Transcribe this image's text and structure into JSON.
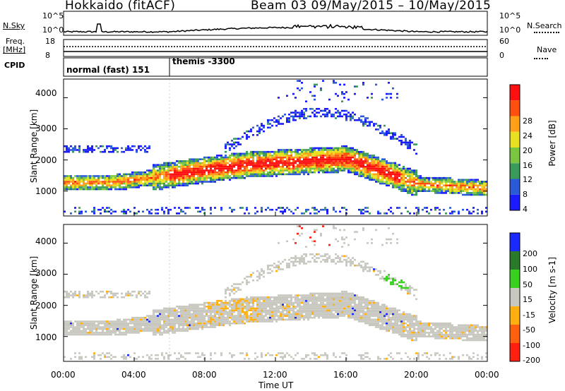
{
  "header": {
    "station": "Hokkaido (fitACF)",
    "beam_date": "Beam 03 09/May/2015 – 10/May/2015"
  },
  "top_panel": {
    "nsky_label": "N.Sky",
    "nsky_ticks": [
      "10^5",
      "10^0"
    ],
    "nsearch_label": "N.Search",
    "nsearch_ticks": [
      "10^5",
      "10^0"
    ],
    "freq_label": "Freq.",
    "freq_unit": "[MHz]",
    "freq_ticks": [
      "18",
      "8"
    ],
    "nave_label": "Nave",
    "nave_ticks": [
      "60",
      "0"
    ],
    "cpid_label": "CPID",
    "cpid_modes": [
      "normal (fast) 151",
      "themis -3300"
    ]
  },
  "chart_data": [
    {
      "type": "heatmap",
      "panel": "power",
      "ylabel": "Slant Range [km]",
      "yticks": [
        "1000",
        "2000",
        "3000",
        "4000"
      ],
      "ylim": [
        200,
        4600
      ],
      "colorbar_label": "Power [dB]",
      "colorbar_ticks": [
        "4",
        "8",
        "12",
        "16",
        "20",
        "24",
        "28"
      ],
      "colors": [
        "#1a1aff",
        "#2a5ad8",
        "#3a9a5a",
        "#7ac640",
        "#e8e020",
        "#ffa018",
        "#ff5010",
        "#ff1010"
      ]
    },
    {
      "type": "heatmap",
      "panel": "velocity",
      "ylabel": "Slant Range [km]",
      "yticks": [
        "1000",
        "2000",
        "3000",
        "4000"
      ],
      "ylim": [
        200,
        4600
      ],
      "colorbar_label": "Velocity [m s-1]",
      "colorbar_ticks": [
        "200",
        "100",
        "50",
        "15",
        "-15",
        "-50",
        "-100",
        "-200"
      ],
      "colors": [
        "#1a2aff",
        "#2a7a2a",
        "#3ad020",
        "#c8c8c0",
        "#ffb010",
        "#ff6010",
        "#ff2010"
      ]
    }
  ],
  "xaxis": {
    "label": "Time UT",
    "ticks": [
      "00:00",
      "04:00",
      "08:00",
      "12:00",
      "16:00",
      "20:00",
      "00:00"
    ]
  }
}
